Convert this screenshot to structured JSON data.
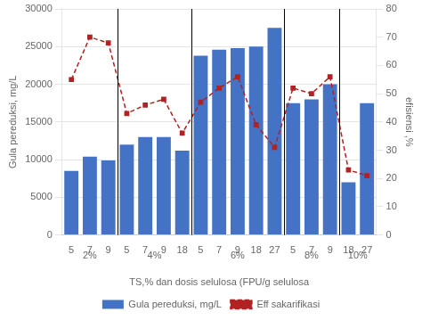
{
  "chart_data": {
    "type": "bar",
    "categories": [
      "5",
      "7",
      "9",
      "5",
      "7",
      "9",
      "18",
      "5",
      "7",
      "9",
      "18",
      "27",
      "5",
      "7",
      "9",
      "18",
      "27"
    ],
    "series": [
      {
        "name": "Gula pereduksi, mg/L",
        "color": "#4472C4",
        "type": "bar",
        "values": [
          8500,
          10400,
          9900,
          12000,
          13000,
          13000,
          11200,
          23800,
          24600,
          24800,
          25000,
          27500,
          17500,
          18000,
          20000,
          7000,
          17500
        ]
      },
      {
        "name": "Eff sakarifikasi",
        "color": "#B22222",
        "type": "line",
        "axis": "y2",
        "line_style": "dashed",
        "marker": "square",
        "values": [
          55,
          70,
          68,
          43,
          46,
          48,
          36,
          47,
          52,
          56,
          39,
          31,
          52,
          50,
          56,
          23,
          21
        ]
      }
    ],
    "group_labels": [
      "2%",
      "4%",
      "6%",
      "8%",
      "10%"
    ],
    "group_centers": [
      1.0,
      4.5,
      9.0,
      13.0,
      15.5
    ],
    "group_separators": [
      2.5,
      6.5,
      11.5,
      14.5
    ],
    "xlabel": "TS,% dan dosis selulosa (FPU/g selulosa",
    "ylabel": "Gula pereduksi, mg/L",
    "y2label": "efisiensi ,%",
    "ylim": [
      0,
      30000
    ],
    "yticks": [
      0,
      5000,
      10000,
      15000,
      20000,
      25000,
      30000
    ],
    "y2lim": [
      0,
      80
    ],
    "y2ticks": [
      0,
      10,
      20,
      30,
      40,
      50,
      60,
      70,
      80
    ],
    "grid": true,
    "legend": "bottom"
  }
}
